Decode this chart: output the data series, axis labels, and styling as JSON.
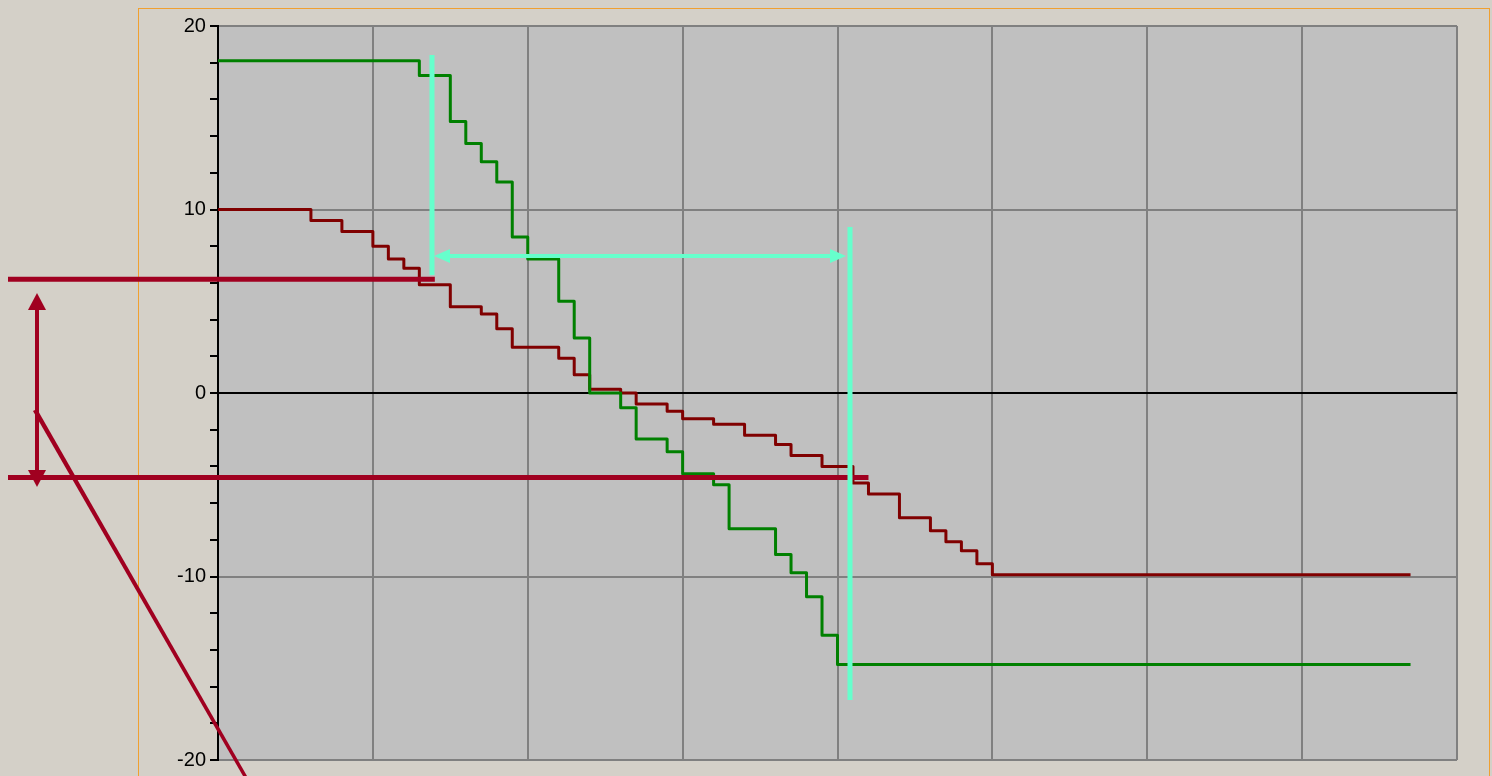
{
  "chart_data": {
    "type": "step",
    "categories": [
      null,
      null,
      null,
      null,
      null,
      null,
      null,
      null,
      null,
      null,
      null,
      null,
      null,
      null,
      null,
      null,
      null,
      null,
      null,
      null,
      null,
      null,
      null,
      null,
      null,
      null,
      null,
      null,
      null,
      null,
      null,
      null,
      null,
      null,
      null,
      null,
      null,
      null,
      null,
      null,
      null,
      null,
      null,
      null,
      null,
      null,
      null,
      null,
      null,
      null,
      null,
      null,
      null,
      null,
      null,
      null,
      null,
      null,
      null,
      null,
      null,
      null,
      null,
      null,
      null,
      null,
      null,
      null,
      null,
      null,
      null,
      null,
      null,
      null,
      null,
      null,
      null,
      null
    ],
    "series": [
      {
        "color": "#008000",
        "values": [
          18.1,
          18.1,
          18.1,
          18.1,
          18.1,
          18.1,
          18.1,
          18.1,
          18.1,
          18.1,
          18.1,
          18.1,
          18.1,
          18.1,
          17.3,
          17.3,
          14.8,
          13.6,
          12.6,
          11.5,
          8.5,
          7.3,
          7.3,
          5.0,
          3.0,
          0,
          0,
          -0.8,
          -2.5,
          -2.5,
          -3.2,
          -4.4,
          -4.4,
          -5.0,
          -7.4,
          -7.4,
          -7.4,
          -8.8,
          -9.8,
          -11.1,
          -13.2,
          -14.8,
          -14.8,
          -14.8,
          -14.8,
          -14.8,
          -14.8,
          -14.8,
          -14.8,
          -14.8,
          -14.8,
          -14.8,
          -14.8,
          -14.8,
          -14.8,
          -14.8,
          -14.8,
          -14.8,
          -14.8,
          -14.8,
          -14.8,
          -14.8,
          -14.8,
          -14.8,
          -14.8,
          -14.8,
          -14.8,
          -14.8,
          -14.8,
          -14.8,
          -14.8,
          -14.8,
          -14.8,
          -14.8,
          -14.8,
          -14.8,
          -14.8,
          -14.8
        ]
      },
      {
        "color": "#800000",
        "values": [
          10,
          10,
          10,
          10,
          10,
          10,
          10,
          9.4,
          9.4,
          8.8,
          8.8,
          8.0,
          7.3,
          6.8,
          5.9,
          5.9,
          4.7,
          4.7,
          4.3,
          3.5,
          2.5,
          2.5,
          2.5,
          1.9,
          1.0,
          0.2,
          0.2,
          0,
          -0.6,
          -0.6,
          -1.0,
          -1.4,
          -1.4,
          -1.7,
          -1.7,
          -2.3,
          -2.3,
          -2.8,
          -3.4,
          -3.4,
          -4.0,
          -4.0,
          -4.9,
          -5.5,
          -5.5,
          -6.8,
          -6.8,
          -7.5,
          -8.1,
          -8.6,
          -9.3,
          -9.9,
          -9.9,
          -9.9,
          -9.9,
          -9.9,
          -9.9,
          -9.9,
          -9.9,
          -9.9,
          -9.9,
          -9.9,
          -9.9,
          -9.9,
          -9.9,
          -9.9,
          -9.9,
          -9.9,
          -9.9,
          -9.9,
          -9.9,
          -9.9,
          -9.9,
          -9.9,
          -9.9,
          -9.9,
          -9.9,
          -9.9
        ]
      }
    ],
    "ylim": [
      -20,
      20
    ],
    "yticks": [
      20,
      {
        "value": 18,
        "label": null
      },
      {
        "value": 16,
        "label": null
      },
      {
        "value": 14,
        "label": null
      },
      {
        "value": 12,
        "label": null
      },
      10,
      {
        "value": 8,
        "label": null
      },
      {
        "value": 6,
        "label": null
      },
      {
        "value": 4,
        "label": null
      },
      {
        "value": 2,
        "label": null
      },
      0,
      {
        "value": -2,
        "label": null
      },
      {
        "value": -4,
        "label": null
      },
      {
        "value": -6,
        "label": null
      },
      {
        "value": -8,
        "label": null
      },
      -10,
      {
        "value": -12,
        "label": null
      },
      {
        "value": -14,
        "label": null
      },
      {
        "value": -16,
        "label": null
      },
      {
        "value": -18,
        "label": null
      },
      -20
    ],
    "ref_lines": [
      {
        "axis": "y",
        "value": 6.2,
        "color": "#a00020"
      },
      {
        "axis": "y",
        "value": -4.6,
        "color": "#a00020"
      }
    ],
    "grid": true,
    "tick_labels": "y",
    "legend": false,
    "marker": "none",
    "line_style": "solid"
  }
}
